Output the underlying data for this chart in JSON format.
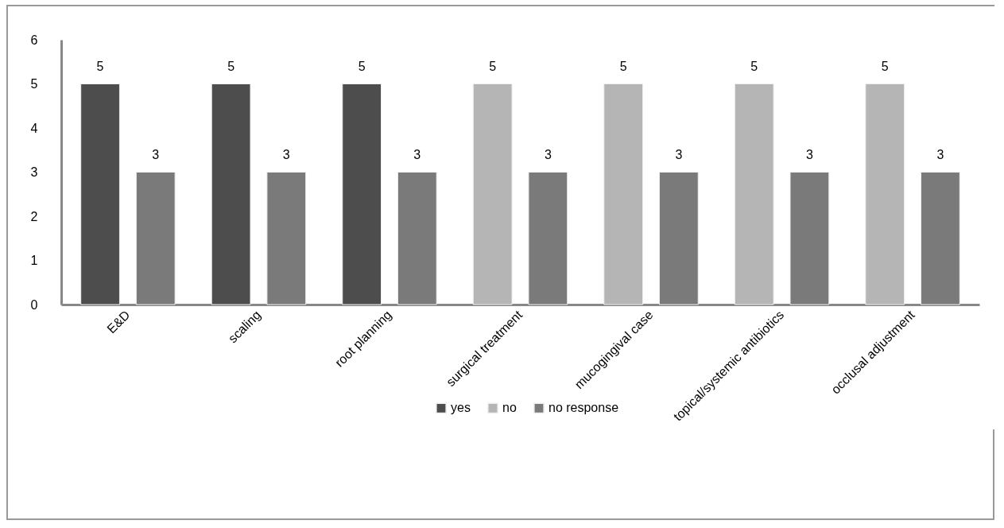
{
  "chart_data": {
    "type": "bar",
    "categories": [
      "E&D",
      "scaling",
      "root planning",
      "surgical treatment",
      "mucogingival case",
      "topical/systemic antibiotics",
      "occlusal adjustment"
    ],
    "series": [
      {
        "name": "yes",
        "color": "#4d4d4d",
        "values": [
          5,
          5,
          5,
          null,
          null,
          null,
          null
        ]
      },
      {
        "name": "no",
        "color": "#b5b5b5",
        "values": [
          null,
          null,
          null,
          5,
          5,
          5,
          5
        ]
      },
      {
        "name": "no response",
        "color": "#7a7a7a",
        "values": [
          3,
          3,
          3,
          3,
          3,
          3,
          3
        ]
      }
    ],
    "ylim": [
      0,
      6
    ],
    "yticks": [
      0,
      1,
      2,
      3,
      4,
      5,
      6
    ],
    "grid": false,
    "legend": "bottom",
    "data_labels": true
  }
}
